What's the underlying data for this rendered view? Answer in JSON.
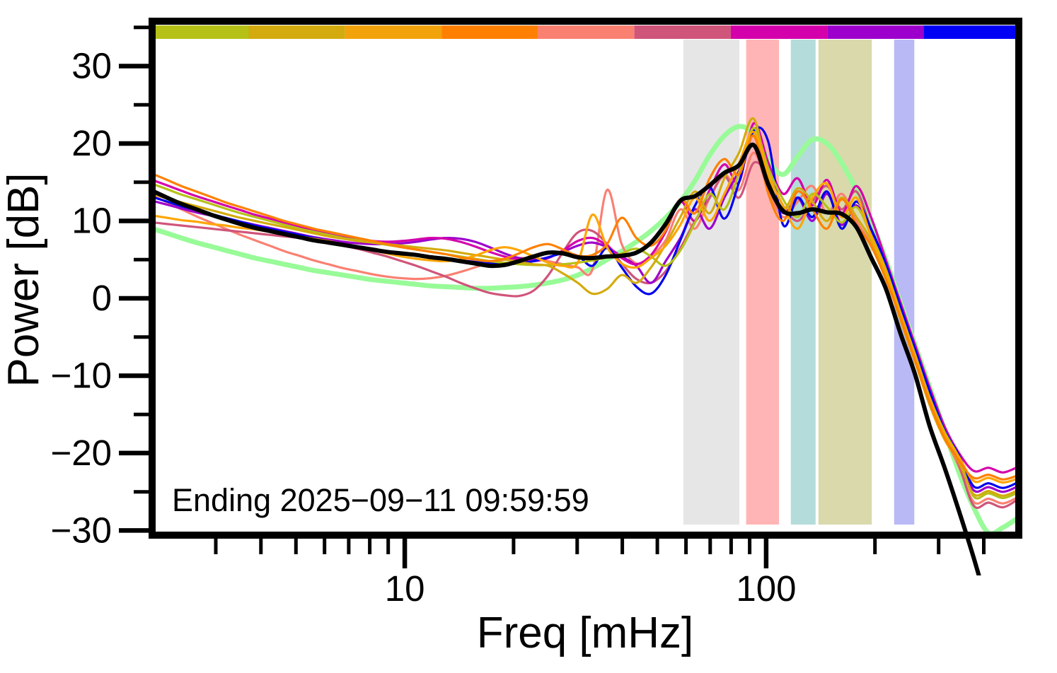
{
  "annotation": {
    "text": "Ending 2025−09−11 09:59:59"
  },
  "axes": {
    "x": {
      "label": "Freq [mHz]",
      "scale": "log",
      "min": 2,
      "max": 500,
      "major_ticks": [
        10,
        100
      ],
      "major_tick_labels": [
        "10",
        "100"
      ],
      "minor_ticks": [
        3,
        4,
        5,
        6,
        7,
        8,
        9,
        20,
        30,
        40,
        50,
        60,
        70,
        80,
        90,
        200,
        300,
        400
      ]
    },
    "y": {
      "label": "Power [dB]",
      "scale": "linear",
      "min": -30.6,
      "max": 35.8,
      "major_ticks": [
        30,
        20,
        10,
        0,
        -10,
        -20,
        -30
      ],
      "major_tick_labels": [
        "30",
        "20",
        "10",
        "0",
        "−10",
        "−20",
        "−30"
      ],
      "minor_ticks": [
        35,
        25,
        15,
        5,
        -5,
        -15,
        -25
      ]
    }
  },
  "top_bar": {
    "y": 36,
    "height": 19,
    "segments": [
      {
        "name": "seg-yellowgreen",
        "color": "#b5c117",
        "f_start": 2,
        "f_end": 3.7
      },
      {
        "name": "seg-gold",
        "color": "#d3ab0e",
        "f_start": 3.7,
        "f_end": 6.84
      },
      {
        "name": "seg-orange",
        "color": "#f2a30b",
        "f_start": 6.84,
        "f_end": 12.64
      },
      {
        "name": "seg-darkorange",
        "color": "#ff8000",
        "f_start": 12.64,
        "f_end": 23.36
      },
      {
        "name": "seg-salmon",
        "color": "#fa8072",
        "f_start": 23.36,
        "f_end": 43.18
      },
      {
        "name": "seg-crimson",
        "color": "#d0557a",
        "f_start": 43.18,
        "f_end": 79.83
      },
      {
        "name": "seg-magenta",
        "color": "#d400ab",
        "f_start": 79.83,
        "f_end": 147.6
      },
      {
        "name": "seg-purple",
        "color": "#9d00cc",
        "f_start": 147.6,
        "f_end": 272.8
      },
      {
        "name": "seg-blue",
        "color": "#0000f5",
        "f_start": 272.8,
        "f_end": 500
      }
    ]
  },
  "bands": [
    {
      "name": "band-gray",
      "color": "#e6e6e6",
      "f_start": 59,
      "f_end": 84.3
    },
    {
      "name": "band-pink",
      "color": "#ffb5b5",
      "f_start": 88,
      "f_end": 108.5
    },
    {
      "name": "band-teal",
      "color": "#b4dcda",
      "f_start": 117,
      "f_end": 137
    },
    {
      "name": "band-khaki",
      "color": "#d9d9ac",
      "f_start": 139.5,
      "f_end": 196
    },
    {
      "name": "band-lavender",
      "color": "#b9b9f6",
      "f_start": 226,
      "f_end": 257
    }
  ],
  "chart_data": {
    "type": "line",
    "title": "",
    "xlabel": "Freq [mHz]",
    "ylabel": "Power [dB]",
    "xlim": [
      2,
      500
    ],
    "ylim": [
      -30.6,
      35.8
    ],
    "grid": false,
    "legend": "none",
    "x": [
      2,
      2.2,
      2.41,
      2.65,
      2.91,
      3.19,
      3.51,
      3.85,
      4.23,
      4.64,
      5.1,
      5.6,
      6.15,
      6.75,
      7.41,
      8.14,
      8.93,
      9.81,
      10.77,
      11.82,
      12.98,
      14.25,
      15.65,
      17.18,
      18.87,
      20.71,
      22.74,
      24.97,
      27.42,
      30.1,
      33.05,
      36.29,
      39.84,
      43.74,
      48.03,
      52.73,
      57.89,
      63.56,
      69.79,
      76.62,
      84.13,
      92.37,
      101.41,
      111.34,
      122.25,
      134.22,
      147.37,
      161.8,
      177.64,
      195.04,
      214.14,
      235.11,
      258.13,
      283.41,
      311.17,
      341.64,
      375.1,
      411.83,
      452.16,
      496.44
    ],
    "series": [
      {
        "name": "reference-smooth",
        "color": "#98fb98",
        "width": 7,
        "values": [
          9,
          8.4,
          7.8,
          7.2,
          6.7,
          6.2,
          5.7,
          5.2,
          4.8,
          4.4,
          4,
          3.6,
          3.3,
          3,
          2.7,
          2.4,
          2.2,
          2,
          1.8,
          1.6,
          1.5,
          1.4,
          1.3,
          1.3,
          1.4,
          1.5,
          1.7,
          2,
          2.4,
          3,
          3.9,
          5,
          6.1,
          7.3,
          8.7,
          10.4,
          12.5,
          15.2,
          18.5,
          21,
          22.2,
          21.3,
          17.8,
          16,
          18.3,
          20.5,
          20,
          17.5,
          14,
          10,
          5,
          -0.5,
          -6,
          -11.5,
          -17,
          -22.5,
          -27,
          -30.3,
          -29.6,
          -28.4
        ]
      },
      {
        "name": "spectrum-salmon",
        "color": "#fa8072",
        "width": 3.2,
        "values": [
          13.3,
          12.4,
          11.5,
          10.6,
          9.8,
          9,
          8.2,
          7.5,
          6.8,
          6.1,
          5.5,
          4.9,
          4.4,
          3.9,
          3.5,
          3.1,
          2.8,
          2.6,
          2.5,
          2.6,
          2.9,
          3.4,
          4,
          4.6,
          5,
          5.2,
          5.1,
          4.8,
          4.4,
          4,
          3.7,
          14,
          7,
          4.5,
          5.5,
          7.5,
          11.5,
          9,
          13,
          16,
          14,
          18.8,
          14,
          10.5,
          12.5,
          14.5,
          11,
          13.5,
          10,
          7,
          3.2,
          -2.2,
          -7.8,
          -13.2,
          -17.8,
          -21.8,
          -26.3,
          -25.9,
          -26.5,
          -25.7
        ]
      },
      {
        "name": "spectrum-crimson",
        "color": "#d0557a",
        "width": 3.2,
        "values": [
          9.8,
          9.6,
          9.4,
          9.2,
          9,
          8.8,
          8.6,
          8.4,
          8.2,
          8,
          7.8,
          7.5,
          7.2,
          6.8,
          6.4,
          5.9,
          5.4,
          4.8,
          4.2,
          3.5,
          2.8,
          2,
          1.3,
          0.7,
          0.4,
          0.3,
          1,
          3,
          6,
          8.5,
          8.7,
          7,
          4.5,
          2.5,
          2,
          3.5,
          6.5,
          10,
          13,
          15.8,
          13,
          17.5,
          15.8,
          12,
          10,
          12.5,
          14.5,
          11.5,
          13.8,
          9,
          4.2,
          -1.2,
          -6.8,
          -12.2,
          -16.8,
          -21.5,
          -26.8,
          -26.4,
          -27,
          -26
        ]
      },
      {
        "name": "spectrum-purple",
        "color": "#9d00cc",
        "width": 3.2,
        "values": [
          12.6,
          12.1,
          11.6,
          11.1,
          10.7,
          10.3,
          9.9,
          9.5,
          9.1,
          8.7,
          8.3,
          7.9,
          7.6,
          7.3,
          7.1,
          7,
          7,
          7.1,
          7.3,
          7.6,
          7.8,
          7.7,
          7.3,
          6.6,
          5.8,
          5.2,
          5,
          5.3,
          6,
          6.8,
          7.2,
          6.6,
          5.4,
          4.2,
          2,
          4.8,
          7.8,
          11.5,
          9,
          13,
          16.5,
          21,
          15,
          11,
          13,
          10,
          13.5,
          9.5,
          12,
          8.5,
          4,
          -1.5,
          -7,
          -12.5,
          -17.5,
          -20.8,
          -24.8,
          -24.4,
          -25,
          -24.3
        ]
      },
      {
        "name": "spectrum-magenta",
        "color": "#d400ab",
        "width": 3.2,
        "values": [
          15.3,
          14.6,
          13.9,
          13.2,
          12.6,
          12,
          11.4,
          10.8,
          10.3,
          9.8,
          9.3,
          8.8,
          8.3,
          7.9,
          7.6,
          7.4,
          7.3,
          7.4,
          7.6,
          7.8,
          7.7,
          7.3,
          6.7,
          6,
          5.4,
          5,
          4.8,
          5.2,
          6.2,
          7.4,
          7.8,
          6.8,
          5.2,
          4.4,
          5.6,
          8.6,
          12.5,
          10,
          14,
          17.3,
          15,
          22.6,
          17.5,
          13.5,
          15.5,
          12,
          15.3,
          11,
          14.5,
          10.5,
          5,
          -0.5,
          -6,
          -11.5,
          -16.5,
          -20,
          -22.3,
          -21.9,
          -22.5,
          -21.8
        ]
      },
      {
        "name": "spectrum-blue",
        "color": "#0000ee",
        "width": 3.2,
        "values": [
          13.1,
          12.5,
          11.9,
          11.4,
          10.9,
          10.4,
          9.9,
          9.4,
          9,
          8.6,
          8.2,
          7.8,
          7.4,
          7,
          6.6,
          6.3,
          6,
          5.7,
          5.5,
          5.3,
          5.1,
          4.9,
          4.7,
          4.5,
          4.4,
          4.5,
          4.8,
          5.3,
          5.8,
          5.5,
          4.2,
          6.5,
          4,
          1.5,
          0.6,
          3,
          7.5,
          12,
          14.4,
          10.3,
          15,
          21.6,
          20.2,
          9.5,
          13,
          10.5,
          13.8,
          9,
          12.5,
          9,
          4.5,
          -1,
          -6.5,
          -12,
          -17,
          -20.3,
          -24.3,
          -23.9,
          -24.5,
          -23.8
        ]
      },
      {
        "name": "spectrum-yellowgreen",
        "color": "#b5c117",
        "width": 3.2,
        "values": [
          14.8,
          14.1,
          13.4,
          12.8,
          12.2,
          11.6,
          11,
          10.5,
          10,
          9.5,
          9,
          8.6,
          8.2,
          7.8,
          7.5,
          7.2,
          6.9,
          6.6,
          6.3,
          6,
          5.7,
          5.4,
          5.1,
          4.8,
          4.6,
          4.4,
          4.3,
          4.3,
          4.4,
          4.6,
          4.9,
          5.3,
          5.8,
          6.4,
          5.4,
          4.2,
          6.2,
          9.8,
          13.5,
          11.5,
          16.2,
          22,
          16.8,
          12.8,
          10.5,
          13.5,
          11.8,
          9.8,
          11.8,
          8.2,
          3.8,
          -1.8,
          -7.2,
          -12.8,
          -17.2,
          -20.6,
          -25.6,
          -25.2,
          -25.8,
          -25.1
        ]
      },
      {
        "name": "spectrum-gold",
        "color": "#d3ab0e",
        "width": 3.2,
        "values": [
          13.5,
          12.9,
          12.4,
          11.9,
          11.4,
          10.9,
          10.4,
          10,
          9.6,
          9.2,
          8.8,
          8.4,
          8,
          7.7,
          7.4,
          7.2,
          7,
          6.8,
          6.6,
          6.4,
          6.2,
          5.9,
          5.6,
          5.3,
          5,
          4.7,
          4.4,
          4.2,
          3.2,
          2,
          0.6,
          1.2,
          3,
          2,
          4,
          7,
          10.5,
          13.8,
          11,
          15.5,
          18.8,
          23.2,
          15.5,
          11.5,
          14.2,
          12.5,
          10,
          13,
          10.5,
          7.5,
          3,
          -2.8,
          -8.2,
          -13.8,
          -18.2,
          -21.2,
          -25.3,
          -24.9,
          -25.5,
          -24.8
        ]
      },
      {
        "name": "spectrum-orange",
        "color": "#ffa500",
        "width": 3.2,
        "values": [
          10.7,
          10.4,
          10.1,
          9.9,
          9.6,
          9.4,
          9.1,
          8.9,
          8.6,
          8.3,
          8,
          7.7,
          7.4,
          7,
          6.6,
          6.2,
          5.8,
          5.4,
          5.1,
          4.9,
          4.8,
          5,
          5.5,
          6.2,
          6.6,
          6.2,
          5.4,
          4.6,
          4.2,
          4.6,
          10.8,
          6.6,
          4.5,
          4,
          5.2,
          6.8,
          9.5,
          13,
          10,
          13.5,
          17.5,
          21.5,
          16,
          12,
          9,
          13,
          14.8,
          10.5,
          13,
          8,
          3.5,
          -2,
          -7.5,
          -13,
          -17.5,
          -20.5,
          -23.6,
          -23.2,
          -23.8,
          -23.3
        ]
      },
      {
        "name": "spectrum-darkorange",
        "color": "#ff8000",
        "width": 3.2,
        "values": [
          16.1,
          15.3,
          14.5,
          13.8,
          13.1,
          12.4,
          11.8,
          11.2,
          10.6,
          10,
          9.5,
          9,
          8.6,
          8.2,
          7.8,
          7.4,
          7,
          6.6,
          6.3,
          6,
          5.7,
          5.3,
          5,
          4.8,
          5.1,
          5.8,
          6.6,
          7,
          6.3,
          5.5,
          5.6,
          7,
          10.4,
          7.8,
          6.8,
          8.8,
          12.8,
          11,
          15.5,
          18,
          16,
          21,
          13.5,
          10,
          13.8,
          11.5,
          9,
          12.8,
          9.5,
          6.8,
          2.5,
          -2.5,
          -8,
          -13.5,
          -18,
          -21,
          -23.2,
          -22.8,
          -23.4,
          -22.9
        ]
      },
      {
        "name": "mean-spectrum",
        "color": "#000000",
        "width": 6,
        "values": [
          13.9,
          13,
          12.2,
          11.5,
          10.8,
          10.2,
          9.6,
          9.1,
          8.7,
          8.3,
          7.9,
          7.5,
          7.2,
          6.9,
          6.6,
          6.3,
          6,
          5.8,
          5.6,
          5.3,
          5.1,
          4.8,
          4.5,
          4.2,
          4.3,
          4.8,
          5.4,
          5.9,
          5.8,
          5.3,
          5.2,
          5.4,
          5.5,
          5.9,
          7.2,
          9.6,
          12.6,
          13.2,
          14.6,
          16.2,
          17.2,
          19.8,
          14.7,
          11.3,
          11,
          11.5,
          11.1,
          10.9,
          9.2,
          5.3,
          1.3,
          -4.5,
          -9.8,
          -16.5,
          -21.8,
          -27.5,
          -33.5,
          -40,
          -46,
          -52
        ]
      }
    ]
  }
}
